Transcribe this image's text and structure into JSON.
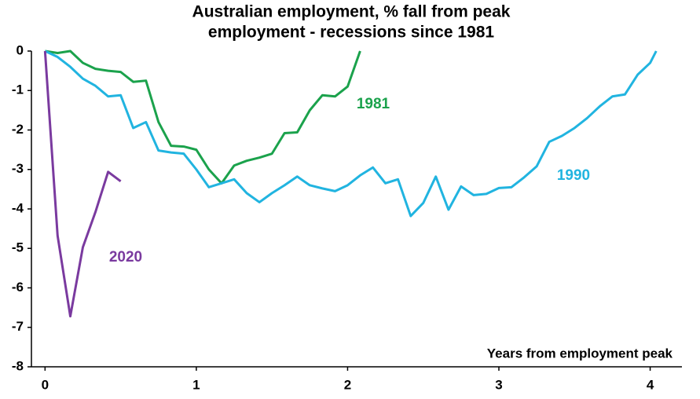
{
  "chart_data": {
    "type": "line",
    "title": [
      "Australian employment, % fall from peak",
      "employment - recessions since 1981"
    ],
    "annotation": "Years from employment peak",
    "xlim": [
      -0.09,
      4.21
    ],
    "ylim": [
      -8,
      0
    ],
    "xticks": [
      0,
      1,
      2,
      3,
      4
    ],
    "yticks": [
      0,
      -1,
      -2,
      -3,
      -4,
      -5,
      -6,
      -7,
      -8
    ],
    "grid": false,
    "series": [
      {
        "name": "1981",
        "color": "#1ba24c",
        "x": [
          0,
          0.083,
          0.167,
          0.25,
          0.333,
          0.417,
          0.5,
          0.583,
          0.667,
          0.75,
          0.833,
          0.917,
          1,
          1.083,
          1.167,
          1.25,
          1.333,
          1.417,
          1.5,
          1.583,
          1.667,
          1.75,
          1.833,
          1.917,
          2,
          2.083
        ],
        "values": [
          0,
          -0.05,
          0,
          -0.3,
          -0.45,
          -0.5,
          -0.53,
          -0.78,
          -0.75,
          -1.8,
          -2.4,
          -2.42,
          -2.5,
          -3.0,
          -3.35,
          -2.9,
          -2.78,
          -2.7,
          -2.6,
          -2.08,
          -2.06,
          -1.5,
          -1.12,
          -1.15,
          -0.9,
          0
        ]
      },
      {
        "name": "1990",
        "color": "#21b4e0",
        "x": [
          0,
          0.083,
          0.167,
          0.25,
          0.333,
          0.417,
          0.5,
          0.583,
          0.667,
          0.75,
          0.833,
          0.917,
          1,
          1.083,
          1.167,
          1.25,
          1.333,
          1.417,
          1.5,
          1.583,
          1.667,
          1.75,
          1.833,
          1.917,
          2,
          2.083,
          2.167,
          2.25,
          2.333,
          2.417,
          2.5,
          2.583,
          2.667,
          2.75,
          2.833,
          2.917,
          3,
          3.083,
          3.167,
          3.25,
          3.333,
          3.417,
          3.5,
          3.583,
          3.667,
          3.75,
          3.833,
          3.917,
          4,
          4.04
        ],
        "values": [
          0,
          -0.15,
          -0.4,
          -0.7,
          -0.88,
          -1.15,
          -1.12,
          -1.95,
          -1.8,
          -2.52,
          -2.57,
          -2.6,
          -3.0,
          -3.45,
          -3.35,
          -3.25,
          -3.6,
          -3.83,
          -3.6,
          -3.4,
          -3.18,
          -3.4,
          -3.48,
          -3.55,
          -3.4,
          -3.15,
          -2.95,
          -3.35,
          -3.25,
          -4.18,
          -3.85,
          -3.18,
          -4.02,
          -3.43,
          -3.65,
          -3.62,
          -3.47,
          -3.45,
          -3.2,
          -2.92,
          -2.3,
          -2.15,
          -1.95,
          -1.7,
          -1.4,
          -1.15,
          -1.1,
          -0.6,
          -0.3,
          0
        ]
      },
      {
        "name": "2020",
        "color": "#7a3a9f",
        "x": [
          0,
          0.083,
          0.167,
          0.25,
          0.333,
          0.417,
          0.5
        ],
        "values": [
          0,
          -4.68,
          -6.72,
          -4.97,
          -4.08,
          -3.06,
          -3.3
        ]
      }
    ]
  }
}
